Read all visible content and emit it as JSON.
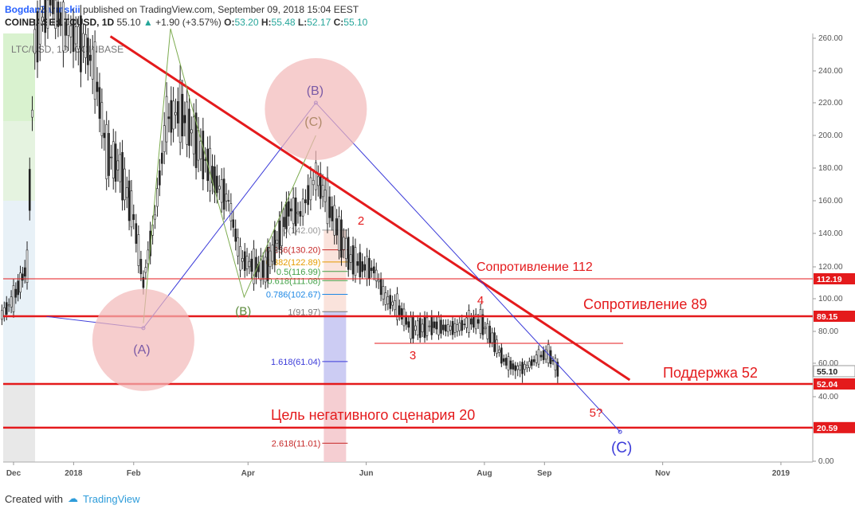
{
  "header": {
    "author": "BogdanZarutskii",
    "published": "published on TradingView.com, September 09, 2018 15:04 EEST",
    "symbol": "COINBASE:LTCUSD, 1D",
    "last": "55.10",
    "change": "+1.90 (+3.57%)",
    "o_label": "O:",
    "o": "53.20",
    "h_label": "H:",
    "h": "55.48",
    "l_label": "L:",
    "l": "52.17",
    "c_label": "C:",
    "c": "55.10"
  },
  "watermark": "LTC/USD, 1D, COINBASE",
  "footer": {
    "created_with": "Created with",
    "brand": "TradingView"
  },
  "colors": {
    "red": "#e41a1c",
    "blue": "#3b3bd9",
    "green": "#7cab4f",
    "circle": "#f2b8b8",
    "price_label": "#e41a1c"
  },
  "chart_data": {
    "type": "candlestick",
    "y_scale": "log",
    "ylim": [
      0,
      265
    ],
    "y_ticks": [
      "260.00",
      "240.00",
      "220.00",
      "200.00",
      "180.00",
      "160.00",
      "140.00",
      "120.00",
      "100.00",
      "80.00",
      "60.00",
      "40.00",
      "20.00",
      "0.00"
    ],
    "y_tick_values": [
      260,
      240,
      220,
      200,
      180,
      160,
      140,
      120,
      100,
      80,
      60,
      40,
      20,
      0
    ],
    "x_ticks": [
      "Dec",
      "2018",
      "Feb",
      "Apr",
      "Jun",
      "Aug",
      "Sep",
      "Nov",
      "2019"
    ],
    "x_tick_dates": [
      "2017-12-01",
      "2018-01-01",
      "2018-02-01",
      "2018-04-01",
      "2018-06-01",
      "2018-08-01",
      "2018-09-01",
      "2018-11-01",
      "2019-01-01"
    ],
    "price_tags": [
      {
        "label": "112.19",
        "value": 112.19
      },
      {
        "label": "89.15",
        "value": 89.15
      },
      {
        "label": "55.10",
        "value": 55.1
      },
      {
        "label": "52.04",
        "value": 52.04
      },
      {
        "label": "20.59",
        "value": 20.59
      }
    ],
    "horizontal_levels": [
      {
        "name": "Сопротивление 112",
        "value": 112.19
      },
      {
        "name": "Сопротивление 89",
        "value": 89.15
      },
      {
        "name": "Поддержка 52",
        "value": 52.04
      },
      {
        "name": "Цель негативного сценария 20",
        "value": 20.59
      }
    ],
    "fib_levels": [
      {
        "label": "0(142.00)",
        "value": 142.0
      },
      {
        "label": "0.236(130.20)",
        "value": 130.2
      },
      {
        "label": "0.382(122.89)",
        "value": 122.89
      },
      {
        "label": "0.5(116.99)",
        "value": 116.99
      },
      {
        "label": "0.618(111.08)",
        "value": 111.08
      },
      {
        "label": "0.786(102.67)",
        "value": 102.67
      },
      {
        "label": "1(91.97)",
        "value": 91.97
      },
      {
        "label": "1.618(61.04)",
        "value": 61.04
      },
      {
        "label": "2.618(11.01)",
        "value": 11.01
      }
    ],
    "wave_labels": [
      "(A)",
      "(B)",
      "(C)",
      "(B)",
      "(C)",
      "2",
      "3",
      "4",
      "5?"
    ],
    "trendline": [
      {
        "date": "2018-01-20",
        "price": 262
      },
      {
        "date": "2018-10-15",
        "price": 53
      }
    ],
    "abc_wave": [
      {
        "date": "2017-12-18",
        "price": 89
      },
      {
        "date": "2018-02-06",
        "price": 82
      },
      {
        "date": "2018-05-06",
        "price": 220
      },
      {
        "date": "2018-10-10",
        "price": 18
      }
    ],
    "candles": [
      {
        "date": "2017-11-25",
        "close": 90
      },
      {
        "date": "2017-12-01",
        "close": 100
      },
      {
        "date": "2017-12-08",
        "close": 120
      },
      {
        "date": "2017-12-12",
        "close": 260
      },
      {
        "date": "2017-12-20",
        "close": 300
      },
      {
        "date": "2017-12-28",
        "close": 270
      },
      {
        "date": "2018-01-06",
        "close": 260
      },
      {
        "date": "2018-01-12",
        "close": 240
      },
      {
        "date": "2018-01-18",
        "close": 190
      },
      {
        "date": "2018-01-25",
        "close": 180
      },
      {
        "date": "2018-02-01",
        "close": 150
      },
      {
        "date": "2018-02-06",
        "close": 110
      },
      {
        "date": "2018-02-12",
        "close": 150
      },
      {
        "date": "2018-02-18",
        "close": 210
      },
      {
        "date": "2018-02-25",
        "close": 215
      },
      {
        "date": "2018-03-04",
        "close": 200
      },
      {
        "date": "2018-03-10",
        "close": 185
      },
      {
        "date": "2018-03-16",
        "close": 170
      },
      {
        "date": "2018-03-22",
        "close": 160
      },
      {
        "date": "2018-03-28",
        "close": 125
      },
      {
        "date": "2018-04-04",
        "close": 120
      },
      {
        "date": "2018-04-10",
        "close": 118
      },
      {
        "date": "2018-04-16",
        "close": 135
      },
      {
        "date": "2018-04-22",
        "close": 155
      },
      {
        "date": "2018-04-28",
        "close": 152
      },
      {
        "date": "2018-05-06",
        "close": 175
      },
      {
        "date": "2018-05-12",
        "close": 160
      },
      {
        "date": "2018-05-18",
        "close": 140
      },
      {
        "date": "2018-05-24",
        "close": 125
      },
      {
        "date": "2018-05-30",
        "close": 120
      },
      {
        "date": "2018-06-05",
        "close": 118
      },
      {
        "date": "2018-06-11",
        "close": 100
      },
      {
        "date": "2018-06-17",
        "close": 95
      },
      {
        "date": "2018-06-24",
        "close": 82
      },
      {
        "date": "2018-06-30",
        "close": 82
      },
      {
        "date": "2018-07-06",
        "close": 84
      },
      {
        "date": "2018-07-12",
        "close": 82
      },
      {
        "date": "2018-07-18",
        "close": 82
      },
      {
        "date": "2018-07-24",
        "close": 86
      },
      {
        "date": "2018-07-30",
        "close": 86
      },
      {
        "date": "2018-08-05",
        "close": 76
      },
      {
        "date": "2018-08-11",
        "close": 62
      },
      {
        "date": "2018-08-17",
        "close": 57
      },
      {
        "date": "2018-08-23",
        "close": 58
      },
      {
        "date": "2018-08-29",
        "close": 64
      },
      {
        "date": "2018-09-03",
        "close": 66
      },
      {
        "date": "2018-09-09",
        "close": 55.1
      }
    ]
  }
}
